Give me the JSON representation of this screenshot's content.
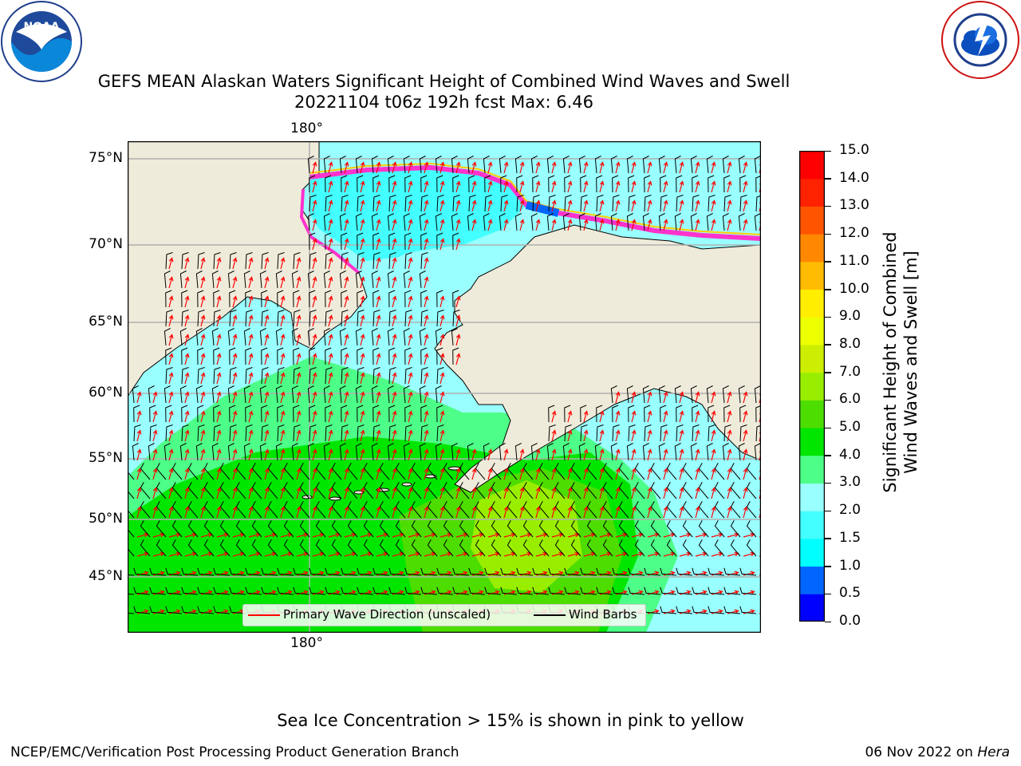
{
  "title": {
    "line1": "GEFS MEAN Alaskan Waters Significant Height of Combined Wind Waves and Swell",
    "line2": "20221104 t06z 192h fcst   Max: 6.46"
  },
  "logos": {
    "noaa": "NOAA",
    "noaa_ring": "NATIONAL OCEANIC AND ATMOSPHERIC ADMINISTRATION · U.S. DEPARTMENT OF COMMERCE",
    "nws_ring": "NATIONAL WEATHER SERVICE"
  },
  "map": {
    "lat_labels": [
      "75°N",
      "70°N",
      "65°N",
      "60°N",
      "55°N",
      "50°N",
      "45°N"
    ],
    "lon_label_top": "180°",
    "lon_label_bottom": "180°",
    "legend": {
      "wave": "Primary Wave Direction (unscaled)",
      "wind": "Wind Barbs"
    },
    "colors": {
      "land": "#efebda",
      "grid": "#b0b0b0",
      "wave_arrow": "#ff0000",
      "barb": "#000000",
      "ice_pink": "#ff33cc",
      "ice_orange": "#ffcc00"
    }
  },
  "colorbar": {
    "label_line1": "Significant Height of Combined",
    "label_line2": "Wind Waves and Swell [m]",
    "ticks": [
      "0.0",
      "0.5",
      "1.0",
      "1.5",
      "2.0",
      "3.0",
      "4.0",
      "5.0",
      "6.0",
      "7.0",
      "8.0",
      "9.0",
      "10.0",
      "11.0",
      "12.0",
      "13.0",
      "14.0",
      "15.0"
    ],
    "colors": [
      "#0000ff",
      "#0066ff",
      "#00ffff",
      "#44ffff",
      "#99ffff",
      "#4dff88",
      "#00e600",
      "#4ddd00",
      "#99ee00",
      "#ccee00",
      "#eeff00",
      "#ffee00",
      "#ffbb00",
      "#ff8800",
      "#ff5500",
      "#ff2200",
      "#ff0000"
    ]
  },
  "notes": {
    "ice": "Sea Ice Concentration > 15% is shown in pink to yellow"
  },
  "footer": {
    "left": "NCEP/EMC/Verification Post Processing Product Generation Branch",
    "right_prefix": "06 Nov 2022 on ",
    "right_machine": "Hera"
  }
}
